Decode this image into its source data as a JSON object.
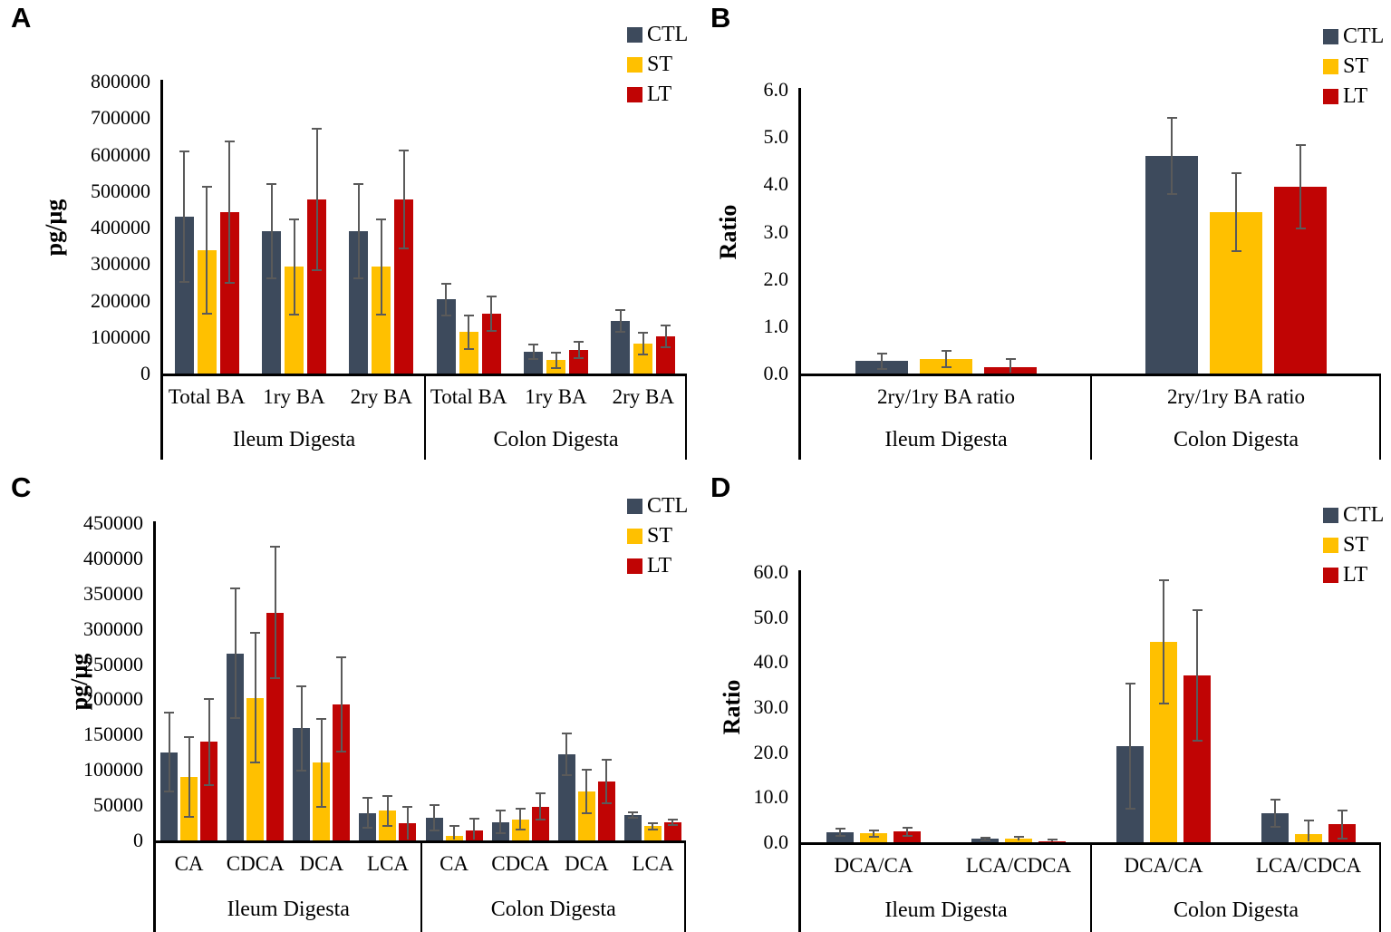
{
  "figure": {
    "background": "#ffffff"
  },
  "legend": {
    "position": "top-right",
    "series": [
      {
        "label": "CTL",
        "color": "#3D4A5C"
      },
      {
        "label": "ST",
        "color": "#FFC000"
      },
      {
        "label": "LT",
        "color": "#C00404"
      }
    ]
  },
  "error_bar_color": "#5A5A5A",
  "axis_color": "#000000",
  "chart_data": [
    {
      "id": "A",
      "type": "bar",
      "panel_label": "A",
      "ylabel": "pg/µg",
      "ylim": [
        0,
        800000
      ],
      "y_step": 100000,
      "y_tick_decimals": 0,
      "grid": false,
      "legend_entries": [
        "CTL",
        "ST",
        "LT"
      ],
      "groups": [
        {
          "label": "Ileum Digesta",
          "categories": [
            "Total BA",
            "1ry BA",
            "2ry BA"
          ],
          "series": [
            {
              "name": "CTL",
              "values": [
                430000,
                390000,
                390000
              ],
              "errors": [
                178000,
                130000,
                130000
              ]
            },
            {
              "name": "ST",
              "values": [
                338000,
                292000,
                292000
              ],
              "errors": [
                175000,
                131000,
                130000
              ]
            },
            {
              "name": "LT",
              "values": [
                442000,
                478000,
                478000
              ],
              "errors": [
                193000,
                194000,
                134000
              ]
            }
          ]
        },
        {
          "label": "Colon Digesta",
          "categories": [
            "Total BA",
            "1ry BA",
            "2ry BA"
          ],
          "series": [
            {
              "name": "CTL",
              "values": [
                203000,
                59000,
                144000
              ],
              "errors": [
                43000,
                20000,
                29000
              ]
            },
            {
              "name": "ST",
              "values": [
                114000,
                37000,
                82000
              ],
              "errors": [
                46000,
                21000,
                30000
              ]
            },
            {
              "name": "LT",
              "values": [
                164000,
                64000,
                102000
              ],
              "errors": [
                47000,
                22000,
                30000
              ]
            }
          ]
        }
      ]
    },
    {
      "id": "B",
      "type": "bar",
      "panel_label": "B",
      "ylabel": "Ratio",
      "ylim": [
        0,
        6.0
      ],
      "y_step": 1.0,
      "y_tick_decimals": 1,
      "grid": false,
      "legend_entries": [
        "CTL",
        "ST",
        "LT"
      ],
      "groups": [
        {
          "label": "Ileum Digesta",
          "categories": [
            "2ry/1ry BA ratio"
          ],
          "series": [
            {
              "name": "CTL",
              "values": [
                0.26
              ],
              "errors": [
                0.17
              ]
            },
            {
              "name": "ST",
              "values": [
                0.3
              ],
              "errors": [
                0.17
              ]
            },
            {
              "name": "LT",
              "values": [
                0.14
              ],
              "errors": [
                0.17
              ]
            }
          ]
        },
        {
          "label": "Colon Digesta",
          "categories": [
            "2ry/1ry BA ratio"
          ],
          "series": [
            {
              "name": "CTL",
              "values": [
                4.6
              ],
              "errors": [
                0.8
              ]
            },
            {
              "name": "ST",
              "values": [
                3.41
              ],
              "errors": [
                0.83
              ]
            },
            {
              "name": "LT",
              "values": [
                3.95
              ],
              "errors": [
                0.88
              ]
            }
          ]
        }
      ]
    },
    {
      "id": "C",
      "type": "bar",
      "panel_label": "C",
      "ylabel": "pg/µg",
      "ylim": [
        0,
        450000
      ],
      "y_step": 50000,
      "y_tick_decimals": 0,
      "grid": false,
      "legend_entries": [
        "CTL",
        "ST",
        "LT"
      ],
      "groups": [
        {
          "label": "Ileum Digesta",
          "categories": [
            "CA",
            "CDCA",
            "DCA",
            "LCA"
          ],
          "series": [
            {
              "name": "CTL",
              "values": [
                125000,
                265000,
                159000,
                39000
              ],
              "errors": [
                56000,
                92000,
                60000,
                21000
              ]
            },
            {
              "name": "ST",
              "values": [
                90000,
                202000,
                110000,
                42000
              ],
              "errors": [
                57000,
                92000,
                62000,
                21000
              ]
            },
            {
              "name": "LT",
              "values": [
                140000,
                323000,
                193000,
                24000
              ],
              "errors": [
                61000,
                93000,
                67000,
                23000
              ]
            }
          ]
        },
        {
          "label": "Colon Digesta",
          "categories": [
            "CA",
            "CDCA",
            "DCA",
            "LCA"
          ],
          "series": [
            {
              "name": "CTL",
              "values": [
                32000,
                26000,
                122000,
                36000
              ],
              "errors": [
                18000,
                16000,
                30000,
                4000
              ]
            },
            {
              "name": "ST",
              "values": [
                6000,
                30000,
                69000,
                20000
              ],
              "errors": [
                15000,
                15000,
                31000,
                4000
              ]
            },
            {
              "name": "LT",
              "values": [
                14000,
                48000,
                84000,
                26000
              ],
              "errors": [
                17000,
                19000,
                31000,
                4000
              ]
            }
          ]
        }
      ]
    },
    {
      "id": "D",
      "type": "bar",
      "panel_label": "D",
      "ylabel": "Ratio",
      "ylim": [
        0,
        60.0
      ],
      "y_step": 10.0,
      "y_tick_decimals": 1,
      "grid": false,
      "legend_entries": [
        "CTL",
        "ST",
        "LT"
      ],
      "groups": [
        {
          "label": "Ileum Digesta",
          "categories": [
            "DCA/CA",
            "LCA/CDCA"
          ],
          "series": [
            {
              "name": "CTL",
              "values": [
                2.3,
                0.8
              ],
              "errors": [
                0.8,
                0.3
              ]
            },
            {
              "name": "ST",
              "values": [
                2.0,
                0.8
              ],
              "errors": [
                0.7,
                0.4
              ]
            },
            {
              "name": "LT",
              "values": [
                2.4,
                0.3
              ],
              "errors": [
                0.9,
                0.3
              ]
            }
          ]
        },
        {
          "label": "Colon Digesta",
          "categories": [
            "DCA/CA",
            "LCA/CDCA"
          ],
          "series": [
            {
              "name": "CTL",
              "values": [
                21.3,
                6.4
              ],
              "errors": [
                13.9,
                3.0
              ]
            },
            {
              "name": "ST",
              "values": [
                44.5,
                1.8
              ],
              "errors": [
                13.7,
                3.0
              ]
            },
            {
              "name": "LT",
              "values": [
                37.0,
                4.0
              ],
              "errors": [
                14.5,
                3.1
              ]
            }
          ]
        }
      ]
    }
  ]
}
